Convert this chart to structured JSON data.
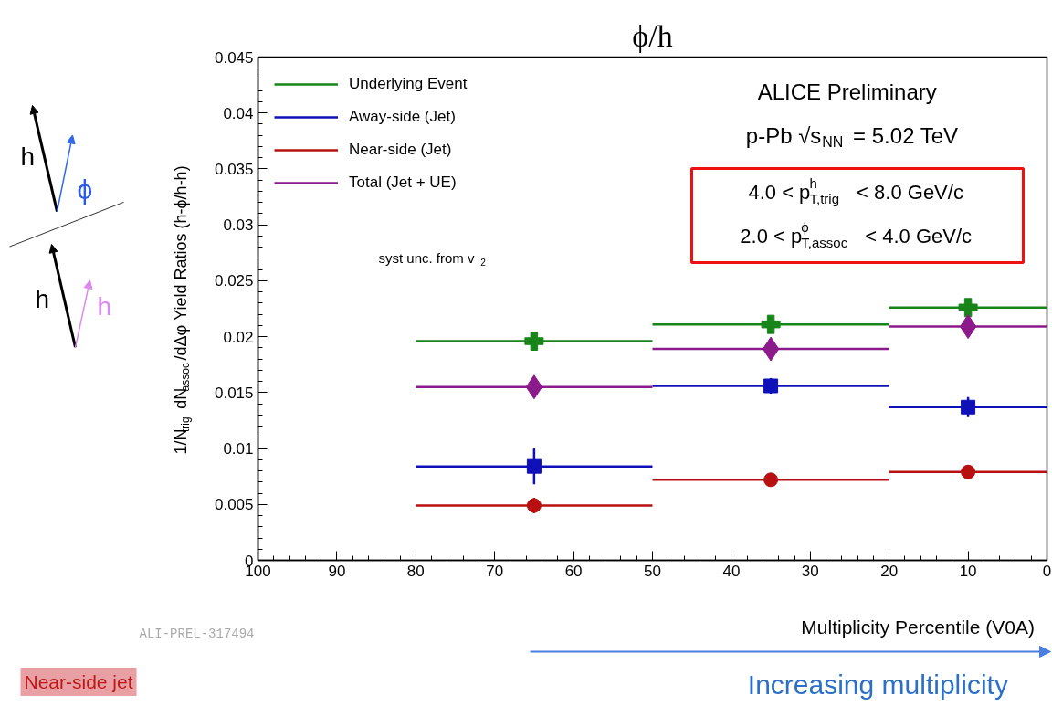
{
  "chart_data": {
    "type": "scatter",
    "title": "ϕ/h",
    "xlabel": "Multiplicity Percentile (V0A)",
    "ylabel": "1/N$_{trig}$ dN$_{assoc}$/dΔφ Yield Ratios (h-ϕ/h-h)",
    "x": [
      65,
      35,
      10
    ],
    "series": [
      {
        "name": "Underlying Event",
        "color": "#17851a",
        "marker": "cross",
        "values": [
          0.0196,
          0.0211,
          0.0226
        ],
        "errors": [
          0.0004,
          0.0005,
          0.0004
        ],
        "xerrors": [
          15,
          15,
          10
        ]
      },
      {
        "name": "Away-side (Jet)",
        "color": "#1010b8",
        "marker": "square",
        "values": [
          0.0084,
          0.0156,
          0.0137
        ],
        "errors": [
          0.0016,
          0.0007,
          0.0009
        ],
        "xerrors": [
          15,
          15,
          10
        ]
      },
      {
        "name": "Near-side (Jet)",
        "color": "#b81010",
        "marker": "circle",
        "values": [
          0.0049,
          0.0072,
          0.0079
        ],
        "errors": [
          0.0007,
          0.0005,
          0.0006
        ],
        "xerrors": [
          15,
          15,
          10
        ]
      },
      {
        "name": "Total (Jet + UE)",
        "color": "#8b1a8b",
        "marker": "diamond",
        "values": [
          0.0155,
          0.0189,
          0.0209
        ],
        "errors": [
          0.0004,
          0.0005,
          0.0004
        ],
        "xerrors": [
          15,
          15,
          10
        ]
      }
    ],
    "xlim": [
      100,
      0
    ],
    "xticks": [
      100,
      90,
      80,
      70,
      60,
      50,
      40,
      30,
      20,
      10,
      0
    ],
    "ylim": [
      0,
      0.045
    ],
    "yticks": [
      0,
      0.005,
      0.01,
      0.015,
      0.02,
      0.025,
      0.03,
      0.035,
      0.04,
      0.045
    ],
    "grid": false,
    "legend": "top left",
    "annotations": [
      "ALICE Preliminary",
      "p-Pb √s$_{NN}$ = 5.02 TeV",
      "4.0 < p$^{h}$$_{T,trig}$ < 8.0 GeV/c",
      "2.0 < p$^{ϕ}$$_{T,assoc}$ < 4.0 GeV/c",
      "syst unc. from v$_{2}$",
      "ALI-PREL-317494",
      "Increasing multiplicity",
      "Near-side jet",
      "h",
      "ϕ",
      "h",
      "h"
    ]
  }
}
